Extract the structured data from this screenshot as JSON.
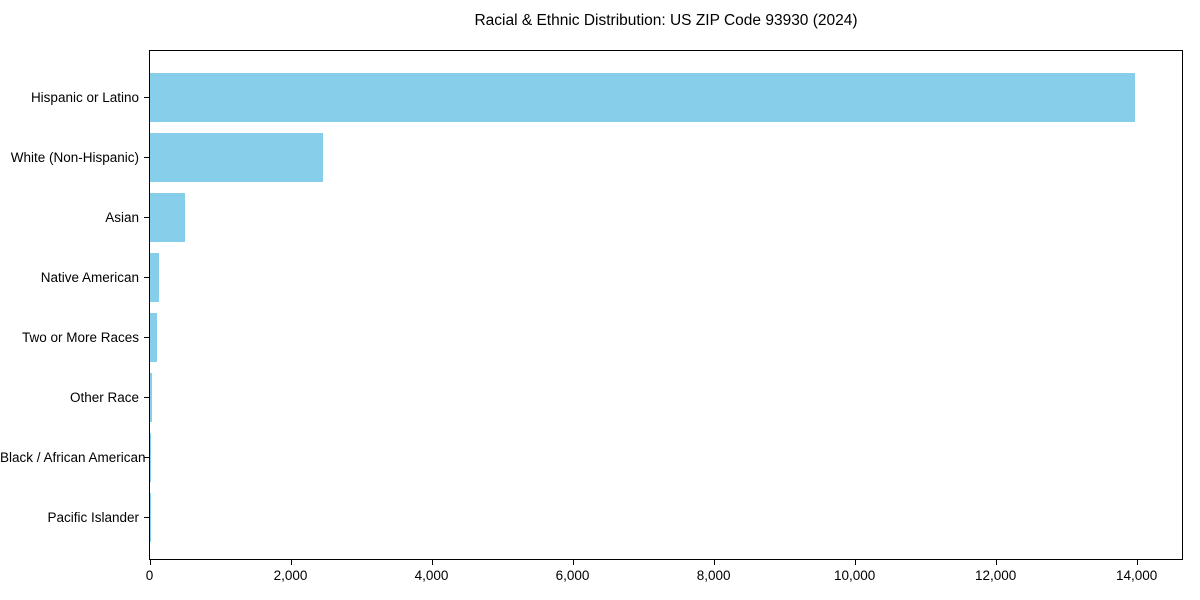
{
  "chart_data": {
    "type": "bar",
    "orientation": "horizontal",
    "title": "Racial & Ethnic Distribution: US ZIP Code 93930 (2024)",
    "categories": [
      "Hispanic or Latino",
      "White (Non-Hispanic)",
      "Asian",
      "Native American",
      "Two or More Races",
      "Other Race",
      "Black / African American",
      "Pacific Islander"
    ],
    "values": [
      13970,
      2455,
      500,
      130,
      105,
      35,
      12,
      2
    ],
    "xlabel": "",
    "ylabel": "",
    "xlim": [
      0,
      14650
    ],
    "xticks": [
      0,
      2000,
      4000,
      6000,
      8000,
      10000,
      12000,
      14000
    ],
    "xtick_labels": [
      "0",
      "2,000",
      "4,000",
      "6,000",
      "8,000",
      "10,000",
      "12,000",
      "14,000"
    ],
    "grid": false,
    "legend": null,
    "bar_color": "#87CEEB",
    "axis_color": "#000000",
    "sort": "descending, largest at top"
  }
}
